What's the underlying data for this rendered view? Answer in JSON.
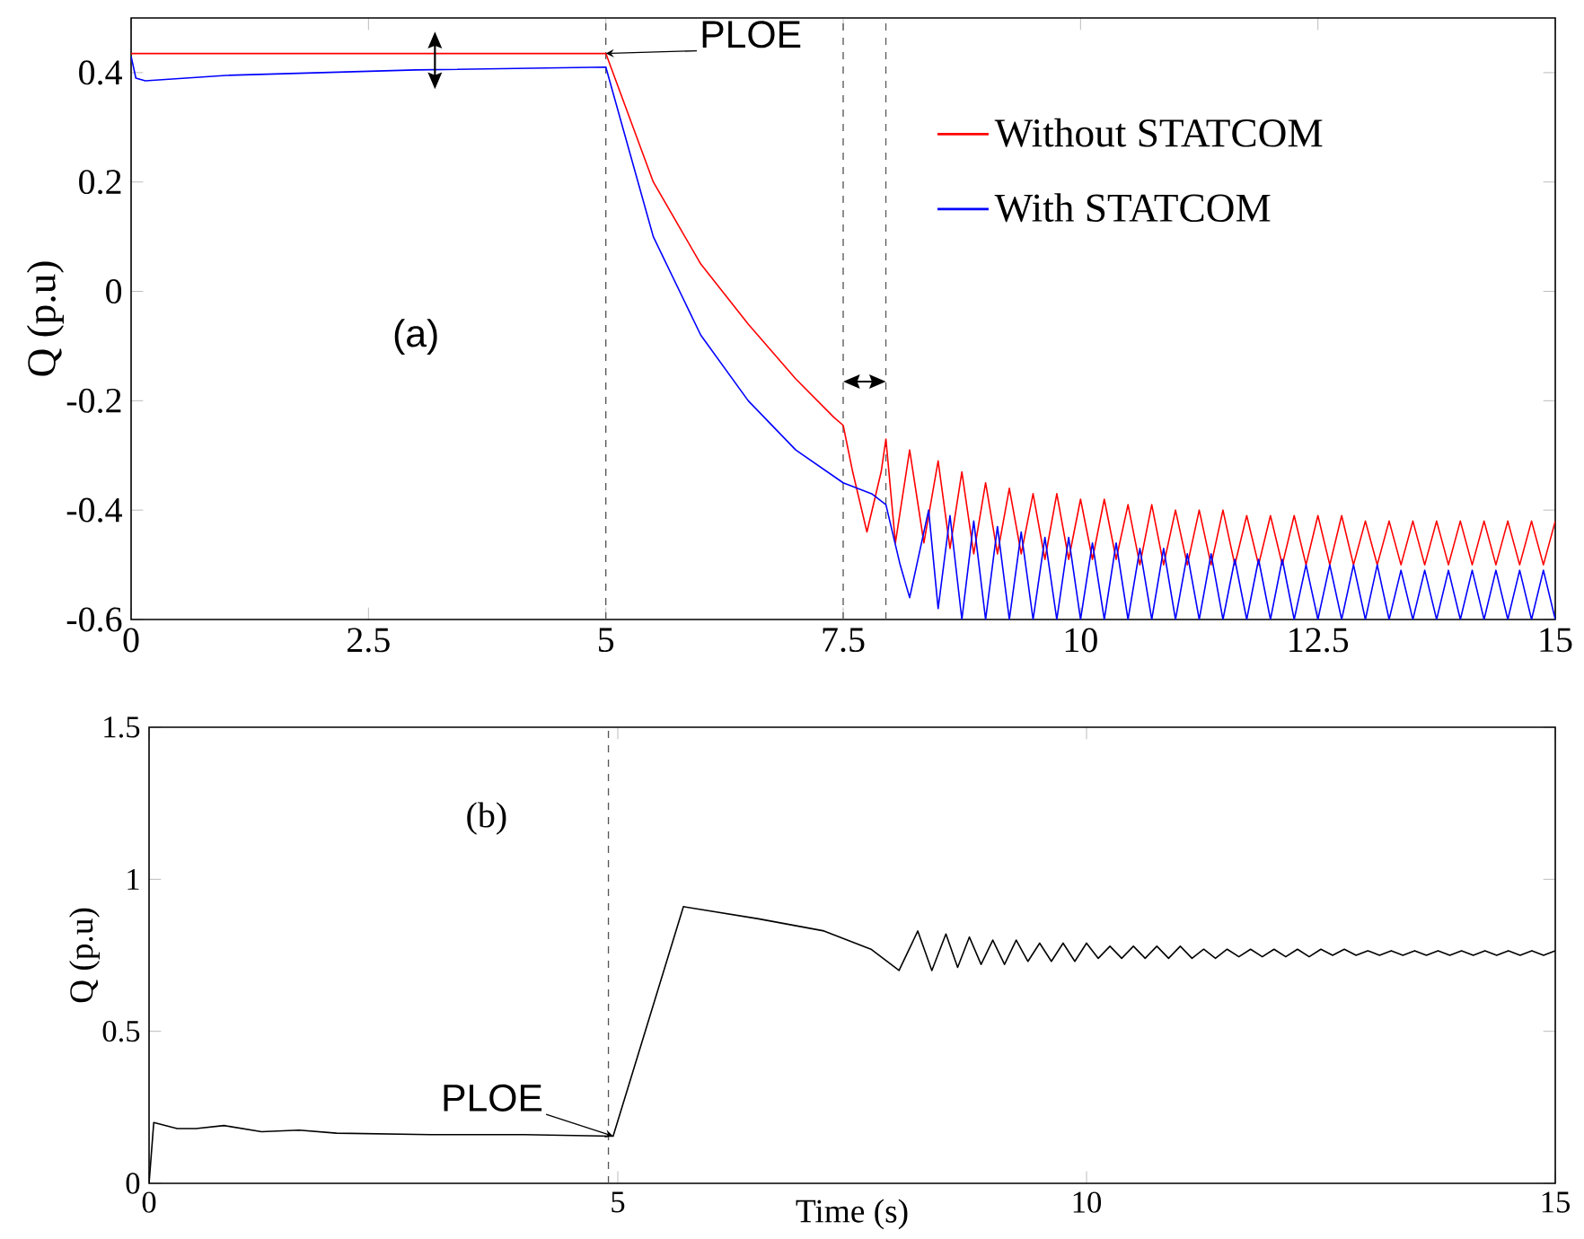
{
  "chart_data": [
    {
      "type": "line",
      "ylabel": "Q (p.u)",
      "xlim": [
        0,
        15
      ],
      "ylim": [
        -0.6,
        0.5
      ],
      "xticks": [
        0,
        2.5,
        5,
        7.5,
        10,
        12.5,
        15
      ],
      "yticks": [
        -0.6,
        -0.4,
        -0.2,
        0,
        0.2,
        0.4
      ],
      "legend": "top right",
      "annotations": [
        {
          "text": "PLOE",
          "x": 5,
          "y": 0.435
        },
        "(a)"
      ],
      "ref_lines": [
        {
          "axis": "x",
          "value": 5,
          "color": "#555555",
          "line_style": "dashed"
        },
        {
          "axis": "x",
          "value": 7.5,
          "color": "#555555",
          "line_style": "dashed"
        },
        {
          "axis": "x",
          "value": 7.95,
          "color": "#555555",
          "line_style": "dashed"
        }
      ],
      "series": [
        {
          "name": "Without   STATCOM",
          "color": "#ff0000",
          "x": [
            0,
            5,
            5.5,
            6,
            6.5,
            7,
            7.4,
            7.5,
            7.6,
            7.75,
            7.9,
            7.95,
            8.05,
            8.2,
            8.35,
            8.5,
            8.625,
            8.75,
            8.875,
            9.0,
            9.125,
            9.25,
            9.375,
            9.5,
            9.625,
            9.75,
            9.875,
            10.0,
            10.125,
            10.25,
            10.375,
            10.5,
            10.625,
            10.75,
            10.875,
            11.0,
            11.125,
            11.25,
            11.375,
            11.5,
            11.625,
            11.75,
            11.875,
            12.0,
            12.125,
            12.25,
            12.375,
            12.5,
            12.625,
            12.75,
            12.875,
            13.0,
            13.125,
            13.25,
            13.375,
            13.5,
            13.625,
            13.75,
            13.875,
            14.0,
            14.125,
            14.25,
            14.375,
            14.5,
            14.625,
            14.75,
            14.875,
            15.0
          ],
          "values": [
            0.435,
            0.435,
            0.2,
            0.05,
            -0.06,
            -0.16,
            -0.23,
            -0.245,
            -0.33,
            -0.44,
            -0.33,
            -0.27,
            -0.46,
            -0.29,
            -0.46,
            -0.31,
            -0.47,
            -0.33,
            -0.48,
            -0.35,
            -0.48,
            -0.36,
            -0.48,
            -0.37,
            -0.49,
            -0.37,
            -0.49,
            -0.38,
            -0.49,
            -0.38,
            -0.49,
            -0.39,
            -0.5,
            -0.39,
            -0.5,
            -0.4,
            -0.5,
            -0.4,
            -0.5,
            -0.4,
            -0.5,
            -0.41,
            -0.5,
            -0.41,
            -0.5,
            -0.41,
            -0.5,
            -0.41,
            -0.5,
            -0.41,
            -0.5,
            -0.42,
            -0.5,
            -0.42,
            -0.5,
            -0.42,
            -0.5,
            -0.42,
            -0.5,
            -0.42,
            -0.5,
            -0.42,
            -0.5,
            -0.42,
            -0.5,
            -0.42,
            -0.5,
            -0.42
          ]
        },
        {
          "name": "With   STATCOM",
          "color": "#0000ff",
          "x": [
            0,
            0.05,
            0.15,
            1,
            3,
            5,
            5.5,
            6,
            6.5,
            7,
            7.5,
            7.8,
            7.95,
            8.1,
            8.2,
            8.3,
            8.4,
            8.5,
            8.625,
            8.75,
            8.875,
            9.0,
            9.125,
            9.25,
            9.375,
            9.5,
            9.625,
            9.75,
            9.875,
            10.0,
            10.125,
            10.25,
            10.375,
            10.5,
            10.625,
            10.75,
            10.875,
            11.0,
            11.125,
            11.25,
            11.375,
            11.5,
            11.625,
            11.75,
            11.875,
            12.0,
            12.125,
            12.25,
            12.375,
            12.5,
            12.625,
            12.75,
            12.875,
            13.0,
            13.125,
            13.25,
            13.375,
            13.5,
            13.625,
            13.75,
            13.875,
            14.0,
            14.125,
            14.25,
            14.375,
            14.5,
            14.625,
            14.75,
            14.875,
            15.0
          ],
          "values": [
            0.43,
            0.39,
            0.385,
            0.395,
            0.405,
            0.41,
            0.1,
            -0.08,
            -0.2,
            -0.29,
            -0.35,
            -0.37,
            -0.39,
            -0.5,
            -0.56,
            -0.48,
            -0.4,
            -0.58,
            -0.41,
            -0.6,
            -0.42,
            -0.6,
            -0.43,
            -0.6,
            -0.44,
            -0.6,
            -0.45,
            -0.6,
            -0.45,
            -0.6,
            -0.46,
            -0.6,
            -0.46,
            -0.6,
            -0.47,
            -0.6,
            -0.47,
            -0.6,
            -0.48,
            -0.6,
            -0.48,
            -0.6,
            -0.49,
            -0.6,
            -0.49,
            -0.6,
            -0.49,
            -0.6,
            -0.5,
            -0.6,
            -0.5,
            -0.6,
            -0.5,
            -0.6,
            -0.5,
            -0.6,
            -0.51,
            -0.6,
            -0.51,
            -0.6,
            -0.51,
            -0.6,
            -0.51,
            -0.6,
            -0.51,
            -0.6,
            -0.51,
            -0.6,
            -0.51,
            -0.6
          ]
        }
      ]
    },
    {
      "type": "line",
      "xlabel": "Time (s)",
      "ylabel": "Q (p.u)",
      "xlim": [
        0,
        15
      ],
      "ylim": [
        0,
        1.5
      ],
      "xticks": [
        0,
        5,
        10,
        15
      ],
      "yticks": [
        0,
        0.5,
        1,
        1.5
      ],
      "annotations": [
        "(b)",
        {
          "text": "PLOE",
          "x": 4.95,
          "y": 0.155
        }
      ],
      "ref_lines": [
        {
          "axis": "x",
          "value": 4.9,
          "color": "#555555",
          "line_style": "dashed"
        }
      ],
      "series": [
        {
          "color": "#000000",
          "x": [
            0,
            0.05,
            0.3,
            0.5,
            0.8,
            1.2,
            1.6,
            2,
            3,
            4,
            4.95,
            5.7,
            6.5,
            7.2,
            7.7,
            8.0,
            8.2,
            8.35,
            8.5,
            8.625,
            8.75,
            8.875,
            9.0,
            9.125,
            9.25,
            9.375,
            9.5,
            9.625,
            9.75,
            9.875,
            10.0,
            10.125,
            10.25,
            10.375,
            10.5,
            10.625,
            10.75,
            10.875,
            11.0,
            11.125,
            11.25,
            11.375,
            11.5,
            11.625,
            11.75,
            11.875,
            12.0,
            12.125,
            12.25,
            12.375,
            12.5,
            12.625,
            12.75,
            12.875,
            13.0,
            13.125,
            13.25,
            13.375,
            13.5,
            13.625,
            13.75,
            13.875,
            14.0,
            14.125,
            14.25,
            14.375,
            14.5,
            14.625,
            14.75,
            14.875,
            15.0
          ],
          "values": [
            0,
            0.2,
            0.18,
            0.18,
            0.19,
            0.17,
            0.175,
            0.165,
            0.16,
            0.16,
            0.155,
            0.91,
            0.87,
            0.83,
            0.77,
            0.7,
            0.83,
            0.7,
            0.82,
            0.71,
            0.81,
            0.72,
            0.8,
            0.72,
            0.8,
            0.73,
            0.79,
            0.73,
            0.79,
            0.73,
            0.79,
            0.74,
            0.78,
            0.74,
            0.78,
            0.74,
            0.78,
            0.74,
            0.78,
            0.74,
            0.77,
            0.74,
            0.77,
            0.745,
            0.77,
            0.745,
            0.77,
            0.745,
            0.77,
            0.745,
            0.77,
            0.75,
            0.77,
            0.75,
            0.765,
            0.75,
            0.765,
            0.75,
            0.765,
            0.75,
            0.765,
            0.75,
            0.765,
            0.75,
            0.765,
            0.75,
            0.765,
            0.75,
            0.765,
            0.75,
            0.765
          ]
        }
      ]
    }
  ]
}
